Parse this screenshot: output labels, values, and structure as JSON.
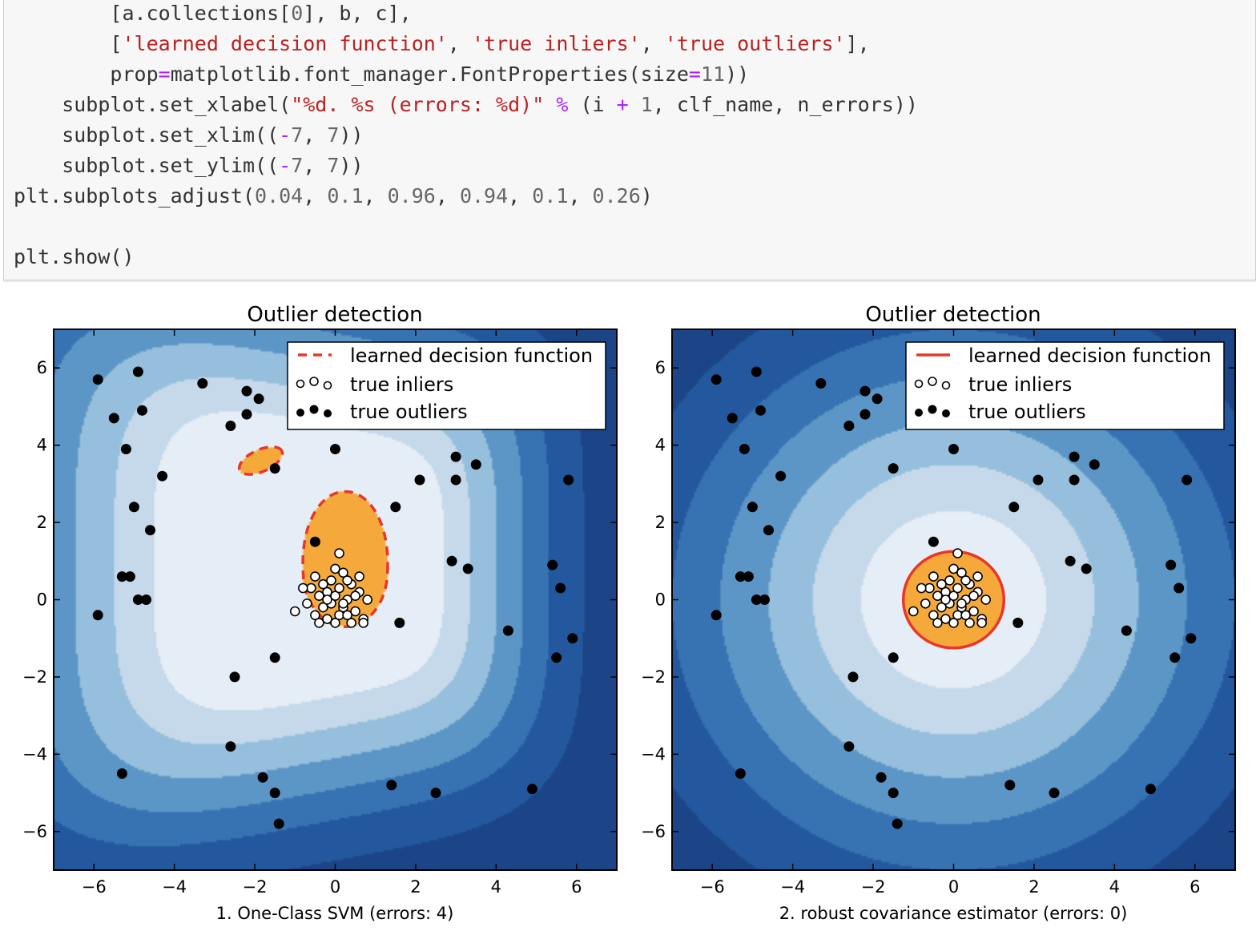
{
  "code_lines": [
    [
      {
        "t": "        [a.collections[",
        "c": ""
      },
      {
        "t": "0",
        "c": "num"
      },
      {
        "t": "], b, c],",
        "c": ""
      }
    ],
    [
      {
        "t": "        [",
        "c": ""
      },
      {
        "t": "'learned decision function'",
        "c": "str"
      },
      {
        "t": ", ",
        "c": ""
      },
      {
        "t": "'true inliers'",
        "c": "str"
      },
      {
        "t": ", ",
        "c": ""
      },
      {
        "t": "'true outliers'",
        "c": "str"
      },
      {
        "t": "],",
        "c": ""
      }
    ],
    [
      {
        "t": "        prop",
        "c": ""
      },
      {
        "t": "=",
        "c": "op"
      },
      {
        "t": "matplotlib.font_manager.FontProperties(size",
        "c": ""
      },
      {
        "t": "=",
        "c": "op"
      },
      {
        "t": "11",
        "c": "num"
      },
      {
        "t": "))",
        "c": ""
      }
    ],
    [
      {
        "t": "    subplot.set_xlabel(",
        "c": ""
      },
      {
        "t": "\"%d. %s (errors: %d)\"",
        "c": "str"
      },
      {
        "t": " ",
        "c": ""
      },
      {
        "t": "%",
        "c": "op"
      },
      {
        "t": " (i ",
        "c": ""
      },
      {
        "t": "+",
        "c": "op"
      },
      {
        "t": " ",
        "c": ""
      },
      {
        "t": "1",
        "c": "num"
      },
      {
        "t": ", clf_name, n_errors))",
        "c": ""
      }
    ],
    [
      {
        "t": "    subplot.set_xlim((",
        "c": ""
      },
      {
        "t": "-",
        "c": "op"
      },
      {
        "t": "7",
        "c": "num"
      },
      {
        "t": ", ",
        "c": ""
      },
      {
        "t": "7",
        "c": "num"
      },
      {
        "t": "))",
        "c": ""
      }
    ],
    [
      {
        "t": "    subplot.set_ylim((",
        "c": ""
      },
      {
        "t": "-",
        "c": "op"
      },
      {
        "t": "7",
        "c": "num"
      },
      {
        "t": ", ",
        "c": ""
      },
      {
        "t": "7",
        "c": "num"
      },
      {
        "t": "))",
        "c": ""
      }
    ],
    [
      {
        "t": "plt.subplots_adjust(",
        "c": ""
      },
      {
        "t": "0.04",
        "c": "num"
      },
      {
        "t": ", ",
        "c": ""
      },
      {
        "t": "0.1",
        "c": "num"
      },
      {
        "t": ", ",
        "c": ""
      },
      {
        "t": "0.96",
        "c": "num"
      },
      {
        "t": ", ",
        "c": ""
      },
      {
        "t": "0.94",
        "c": "num"
      },
      {
        "t": ", ",
        "c": ""
      },
      {
        "t": "0.1",
        "c": "num"
      },
      {
        "t": ", ",
        "c": ""
      },
      {
        "t": "0.26",
        "c": "num"
      },
      {
        "t": ")",
        "c": ""
      }
    ],
    [
      {
        "t": "",
        "c": ""
      }
    ],
    [
      {
        "t": "plt.show()",
        "c": ""
      }
    ]
  ],
  "colors": {
    "levels": [
      "#1c4587",
      "#23589e",
      "#3772b2",
      "#5b96c6",
      "#95bfdc",
      "#c5d9ea",
      "#e5eef7"
    ],
    "inlier_region": "#f4a93a",
    "boundary": "#e8372a"
  },
  "legend_labels": [
    "learned decision function",
    "true inliers",
    "true outliers"
  ],
  "chart_data": [
    {
      "type": "scatter",
      "title": "Outlier detection",
      "xlabel": "1. One-Class SVM (errors: 4)",
      "xlim": [
        -7,
        7
      ],
      "ylim": [
        -7,
        7
      ],
      "xticks": [
        -6,
        -4,
        -2,
        0,
        2,
        4,
        6
      ],
      "yticks": [
        -6,
        -4,
        -2,
        0,
        2,
        4,
        6
      ],
      "legend_position": "top-right",
      "boundary_style": "dashed",
      "decision_model": "svm",
      "outliers": [
        [
          -5.9,
          5.7
        ],
        [
          -4.9,
          5.9
        ],
        [
          -5.5,
          4.7
        ],
        [
          -4.8,
          4.9
        ],
        [
          -3.3,
          5.6
        ],
        [
          -2.2,
          5.4
        ],
        [
          -1.9,
          5.2
        ],
        [
          -2.2,
          4.8
        ],
        [
          -2.6,
          4.5
        ],
        [
          -5.2,
          3.9
        ],
        [
          -4.3,
          3.2
        ],
        [
          -1.5,
          3.4
        ],
        [
          0.0,
          3.9
        ],
        [
          2.1,
          3.1
        ],
        [
          3.0,
          3.7
        ],
        [
          3.5,
          3.5
        ],
        [
          3.0,
          3.1
        ],
        [
          5.8,
          3.1
        ],
        [
          -5.0,
          2.4
        ],
        [
          -4.6,
          1.8
        ],
        [
          1.5,
          2.4
        ],
        [
          -0.5,
          1.5
        ],
        [
          2.9,
          1.0
        ],
        [
          3.3,
          0.8
        ],
        [
          5.4,
          0.9
        ],
        [
          -5.3,
          0.6
        ],
        [
          -5.1,
          0.6
        ],
        [
          -4.9,
          0.0
        ],
        [
          -4.7,
          0.0
        ],
        [
          5.6,
          0.3
        ],
        [
          -5.9,
          -0.4
        ],
        [
          1.6,
          -0.6
        ],
        [
          4.3,
          -0.8
        ],
        [
          5.9,
          -1.0
        ],
        [
          5.5,
          -1.5
        ],
        [
          -1.5,
          -1.5
        ],
        [
          -2.5,
          -2.0
        ],
        [
          -2.6,
          -3.8
        ],
        [
          -5.3,
          -4.5
        ],
        [
          -1.8,
          -4.6
        ],
        [
          -1.5,
          -5.0
        ],
        [
          1.4,
          -4.8
        ],
        [
          2.5,
          -5.0
        ],
        [
          4.9,
          -4.9
        ],
        [
          -1.4,
          -5.8
        ]
      ],
      "inliers": [
        [
          0.0,
          0.1
        ],
        [
          0.1,
          0.3
        ],
        [
          -0.1,
          -0.1
        ],
        [
          0.2,
          -0.2
        ],
        [
          -0.2,
          0.2
        ],
        [
          0.3,
          0.0
        ],
        [
          -0.3,
          -0.2
        ],
        [
          0.4,
          0.4
        ],
        [
          -0.4,
          0.1
        ],
        [
          0.1,
          -0.4
        ],
        [
          -0.1,
          0.5
        ],
        [
          0.5,
          -0.3
        ],
        [
          -0.5,
          -0.4
        ],
        [
          0.6,
          0.2
        ],
        [
          -0.6,
          0.3
        ],
        [
          0.2,
          0.7
        ],
        [
          0.0,
          -0.6
        ],
        [
          0.7,
          -0.5
        ],
        [
          -0.2,
          -0.5
        ],
        [
          0.4,
          -0.6
        ],
        [
          0.1,
          1.2
        ],
        [
          -0.5,
          0.6
        ],
        [
          0.6,
          0.6
        ],
        [
          -0.8,
          0.3
        ],
        [
          -1.0,
          -0.3
        ],
        [
          0.7,
          -0.6
        ],
        [
          0.3,
          0.5
        ],
        [
          -0.3,
          0.4
        ],
        [
          0.2,
          -0.1
        ],
        [
          -0.7,
          -0.1
        ],
        [
          0.5,
          0.1
        ],
        [
          -0.4,
          -0.6
        ],
        [
          0.0,
          0.8
        ],
        [
          0.3,
          -0.4
        ],
        [
          -0.2,
          0.0
        ],
        [
          0.8,
          0.0
        ]
      ]
    },
    {
      "type": "scatter",
      "title": "Outlier detection",
      "xlabel": "2. robust covariance estimator (errors: 0)",
      "xlim": [
        -7,
        7
      ],
      "ylim": [
        -7,
        7
      ],
      "xticks": [
        -6,
        -4,
        -2,
        0,
        2,
        4,
        6
      ],
      "yticks": [
        -6,
        -4,
        -2,
        0,
        2,
        4,
        6
      ],
      "legend_position": "top-right",
      "boundary_style": "solid",
      "decision_model": "covariance",
      "outliers": [
        [
          -5.9,
          5.7
        ],
        [
          -4.9,
          5.9
        ],
        [
          -5.5,
          4.7
        ],
        [
          -4.8,
          4.9
        ],
        [
          -3.3,
          5.6
        ],
        [
          -2.2,
          5.4
        ],
        [
          -1.9,
          5.2
        ],
        [
          -2.2,
          4.8
        ],
        [
          -2.6,
          4.5
        ],
        [
          -5.2,
          3.9
        ],
        [
          -4.3,
          3.2
        ],
        [
          -1.5,
          3.4
        ],
        [
          0.0,
          3.9
        ],
        [
          2.1,
          3.1
        ],
        [
          3.0,
          3.7
        ],
        [
          3.5,
          3.5
        ],
        [
          3.0,
          3.1
        ],
        [
          5.8,
          3.1
        ],
        [
          -5.0,
          2.4
        ],
        [
          -4.6,
          1.8
        ],
        [
          1.5,
          2.4
        ],
        [
          -0.5,
          1.5
        ],
        [
          2.9,
          1.0
        ],
        [
          3.3,
          0.8
        ],
        [
          5.4,
          0.9
        ],
        [
          -5.3,
          0.6
        ],
        [
          -5.1,
          0.6
        ],
        [
          -4.9,
          0.0
        ],
        [
          -4.7,
          0.0
        ],
        [
          5.6,
          0.3
        ],
        [
          -5.9,
          -0.4
        ],
        [
          1.6,
          -0.6
        ],
        [
          4.3,
          -0.8
        ],
        [
          5.9,
          -1.0
        ],
        [
          5.5,
          -1.5
        ],
        [
          -1.5,
          -1.5
        ],
        [
          -2.5,
          -2.0
        ],
        [
          -2.6,
          -3.8
        ],
        [
          -5.3,
          -4.5
        ],
        [
          -1.8,
          -4.6
        ],
        [
          -1.5,
          -5.0
        ],
        [
          1.4,
          -4.8
        ],
        [
          2.5,
          -5.0
        ],
        [
          4.9,
          -4.9
        ],
        [
          -1.4,
          -5.8
        ]
      ],
      "inliers": [
        [
          0.0,
          0.1
        ],
        [
          0.1,
          0.3
        ],
        [
          -0.1,
          -0.1
        ],
        [
          0.2,
          -0.2
        ],
        [
          -0.2,
          0.2
        ],
        [
          0.3,
          0.0
        ],
        [
          -0.3,
          -0.2
        ],
        [
          0.4,
          0.4
        ],
        [
          -0.4,
          0.1
        ],
        [
          0.1,
          -0.4
        ],
        [
          -0.1,
          0.5
        ],
        [
          0.5,
          -0.3
        ],
        [
          -0.5,
          -0.4
        ],
        [
          0.6,
          0.2
        ],
        [
          -0.6,
          0.3
        ],
        [
          0.2,
          0.7
        ],
        [
          0.0,
          -0.6
        ],
        [
          0.7,
          -0.5
        ],
        [
          -0.2,
          -0.5
        ],
        [
          0.4,
          -0.6
        ],
        [
          0.1,
          1.2
        ],
        [
          -0.5,
          0.6
        ],
        [
          0.6,
          0.6
        ],
        [
          -0.8,
          0.3
        ],
        [
          -1.0,
          -0.3
        ],
        [
          0.7,
          -0.6
        ],
        [
          0.3,
          0.5
        ],
        [
          -0.3,
          0.4
        ],
        [
          0.2,
          -0.1
        ],
        [
          -0.7,
          -0.1
        ],
        [
          0.5,
          0.1
        ],
        [
          -0.4,
          -0.6
        ],
        [
          0.0,
          0.8
        ],
        [
          0.3,
          -0.4
        ],
        [
          -0.2,
          0.0
        ],
        [
          0.8,
          0.0
        ]
      ]
    }
  ]
}
